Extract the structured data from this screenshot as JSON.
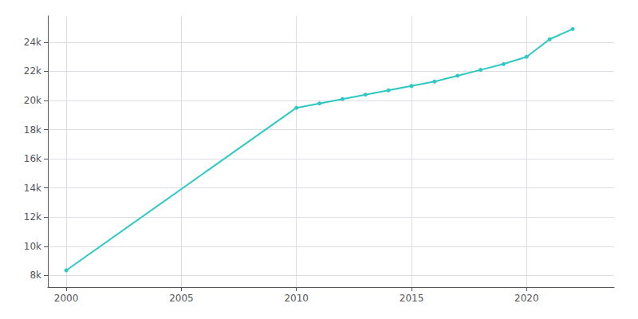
{
  "chart_data": {
    "type": "line",
    "x": [
      2000,
      2010,
      2011,
      2012,
      2013,
      2014,
      2015,
      2016,
      2017,
      2018,
      2019,
      2020,
      2021,
      2022
    ],
    "values": [
      8350,
      19500,
      19800,
      20100,
      20400,
      20700,
      21000,
      21300,
      21700,
      22100,
      22500,
      23000,
      24200,
      24900
    ],
    "color": "#2EC8C4",
    "marker": "circle",
    "xlim": [
      1999.2,
      2023.8
    ],
    "xticks": [
      2000,
      2005,
      2010,
      2015,
      2020
    ],
    "ylim": [
      7200,
      25800
    ],
    "yticks": [
      {
        "value": 8000,
        "label": "8k"
      },
      {
        "value": 10000,
        "label": "10k"
      },
      {
        "value": 12000,
        "label": "12k"
      },
      {
        "value": 14000,
        "label": "14k"
      },
      {
        "value": 16000,
        "label": "16k"
      },
      {
        "value": 18000,
        "label": "18k"
      },
      {
        "value": 20000,
        "label": "20k"
      },
      {
        "value": 22000,
        "label": "22k"
      },
      {
        "value": 24000,
        "label": "24k"
      }
    ],
    "grid": true
  }
}
